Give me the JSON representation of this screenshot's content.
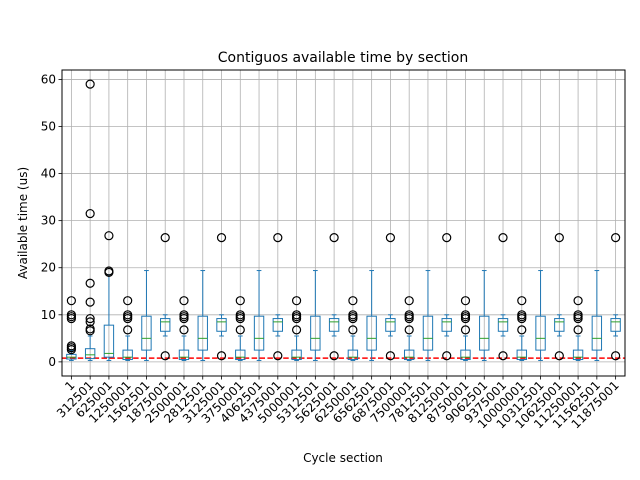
{
  "chart_data": {
    "type": "box",
    "title": "Contiguos available time by section",
    "xlabel": "Cycle section",
    "ylabel": "Available time (us)",
    "ylim": [
      -3,
      62
    ],
    "yticks": [
      0,
      10,
      20,
      30,
      40,
      50,
      60
    ],
    "grid": true,
    "reference_line": {
      "y": 0.8,
      "color": "#ff0000",
      "style": "dashed"
    },
    "box_color": "#1f77b4",
    "median_color": "#2ca02c",
    "categories": [
      "1",
      "312501",
      "625001",
      "1250001",
      "1562501",
      "1875001",
      "2500001",
      "2812501",
      "3125001",
      "3750001",
      "4062501",
      "4375001",
      "5000001",
      "5312501",
      "5625001",
      "6250001",
      "6562501",
      "6875001",
      "7500001",
      "7812501",
      "8125001",
      "8750001",
      "9062501",
      "9375001",
      "10000001",
      "10312501",
      "10625001",
      "11250001",
      "11562501",
      "11875001"
    ],
    "boxes": [
      {
        "whislo": 0.3,
        "q1": 0.6,
        "med": 1.0,
        "q3": 1.6,
        "whishi": 2.4,
        "fliers": [
          2.6,
          3.0,
          3.4,
          9.2,
          9.6,
          10.0,
          13.0
        ]
      },
      {
        "whislo": 0.3,
        "q1": 0.7,
        "med": 1.5,
        "q3": 2.8,
        "whishi": 5.5,
        "fliers": [
          6.6,
          7.0,
          8.5,
          9.2,
          12.7,
          16.7,
          31.5,
          59.0
        ]
      },
      {
        "whislo": 0.3,
        "q1": 1.0,
        "med": 1.8,
        "q3": 7.8,
        "whishi": 18.5,
        "fliers": [
          19.0,
          19.3,
          26.8
        ]
      },
      {
        "whislo": 0.3,
        "q1": 0.5,
        "med": 1.0,
        "q3": 2.5,
        "whishi": 5.5,
        "fliers": [
          6.8,
          9.2,
          9.6,
          10.0,
          13.0
        ]
      },
      {
        "whislo": 0.3,
        "q1": 2.5,
        "med": 5.0,
        "q3": 9.7,
        "whishi": 19.4,
        "fliers": []
      },
      {
        "whislo": 5.5,
        "q1": 6.5,
        "med": 8.5,
        "q3": 9.2,
        "whishi": 10.0,
        "fliers": [
          1.3,
          26.4
        ]
      },
      {
        "whislo": 0.3,
        "q1": 0.5,
        "med": 1.0,
        "q3": 2.5,
        "whishi": 5.5,
        "fliers": [
          6.8,
          9.2,
          9.6,
          10.0,
          13.0
        ]
      },
      {
        "whislo": 0.3,
        "q1": 2.5,
        "med": 5.0,
        "q3": 9.7,
        "whishi": 19.4,
        "fliers": []
      },
      {
        "whislo": 5.5,
        "q1": 6.5,
        "med": 8.5,
        "q3": 9.2,
        "whishi": 10.0,
        "fliers": [
          1.3,
          26.4
        ]
      },
      {
        "whislo": 0.3,
        "q1": 0.5,
        "med": 1.0,
        "q3": 2.5,
        "whishi": 5.5,
        "fliers": [
          6.8,
          9.2,
          9.6,
          10.0,
          13.0
        ]
      },
      {
        "whislo": 0.3,
        "q1": 2.5,
        "med": 5.0,
        "q3": 9.7,
        "whishi": 19.4,
        "fliers": []
      },
      {
        "whislo": 5.5,
        "q1": 6.5,
        "med": 8.5,
        "q3": 9.2,
        "whishi": 10.0,
        "fliers": [
          1.3,
          26.4
        ]
      },
      {
        "whislo": 0.3,
        "q1": 0.5,
        "med": 1.0,
        "q3": 2.5,
        "whishi": 5.5,
        "fliers": [
          6.8,
          9.2,
          9.6,
          10.0,
          13.0
        ]
      },
      {
        "whislo": 0.3,
        "q1": 2.5,
        "med": 5.0,
        "q3": 9.7,
        "whishi": 19.4,
        "fliers": []
      },
      {
        "whislo": 5.5,
        "q1": 6.5,
        "med": 8.5,
        "q3": 9.2,
        "whishi": 10.0,
        "fliers": [
          1.3,
          26.4
        ]
      },
      {
        "whislo": 0.3,
        "q1": 0.5,
        "med": 1.0,
        "q3": 2.5,
        "whishi": 5.5,
        "fliers": [
          6.8,
          9.2,
          9.6,
          10.0,
          13.0
        ]
      },
      {
        "whislo": 0.3,
        "q1": 2.5,
        "med": 5.0,
        "q3": 9.7,
        "whishi": 19.4,
        "fliers": []
      },
      {
        "whislo": 5.5,
        "q1": 6.5,
        "med": 8.5,
        "q3": 9.2,
        "whishi": 10.0,
        "fliers": [
          1.3,
          26.4
        ]
      },
      {
        "whislo": 0.3,
        "q1": 0.5,
        "med": 1.0,
        "q3": 2.5,
        "whishi": 5.5,
        "fliers": [
          6.8,
          9.2,
          9.6,
          10.0,
          13.0
        ]
      },
      {
        "whislo": 0.3,
        "q1": 2.5,
        "med": 5.0,
        "q3": 9.7,
        "whishi": 19.4,
        "fliers": []
      },
      {
        "whislo": 5.5,
        "q1": 6.5,
        "med": 8.5,
        "q3": 9.2,
        "whishi": 10.0,
        "fliers": [
          1.3,
          26.4
        ]
      },
      {
        "whislo": 0.3,
        "q1": 0.5,
        "med": 1.0,
        "q3": 2.5,
        "whishi": 5.5,
        "fliers": [
          6.8,
          9.2,
          9.6,
          10.0,
          13.0
        ]
      },
      {
        "whislo": 0.3,
        "q1": 2.5,
        "med": 5.0,
        "q3": 9.7,
        "whishi": 19.4,
        "fliers": []
      },
      {
        "whislo": 5.5,
        "q1": 6.5,
        "med": 8.5,
        "q3": 9.2,
        "whishi": 10.0,
        "fliers": [
          1.3,
          26.4
        ]
      },
      {
        "whislo": 0.3,
        "q1": 0.5,
        "med": 1.0,
        "q3": 2.5,
        "whishi": 5.5,
        "fliers": [
          6.8,
          9.2,
          9.6,
          10.0,
          13.0
        ]
      },
      {
        "whislo": 0.3,
        "q1": 2.5,
        "med": 5.0,
        "q3": 9.7,
        "whishi": 19.4,
        "fliers": []
      },
      {
        "whislo": 5.5,
        "q1": 6.5,
        "med": 8.5,
        "q3": 9.2,
        "whishi": 10.0,
        "fliers": [
          1.3,
          26.4
        ]
      },
      {
        "whislo": 0.3,
        "q1": 0.5,
        "med": 1.0,
        "q3": 2.5,
        "whishi": 5.5,
        "fliers": [
          6.8,
          9.2,
          9.6,
          10.0,
          13.0
        ]
      },
      {
        "whislo": 0.3,
        "q1": 2.5,
        "med": 5.0,
        "q3": 9.7,
        "whishi": 19.4,
        "fliers": []
      },
      {
        "whislo": 5.5,
        "q1": 6.5,
        "med": 8.5,
        "q3": 9.2,
        "whishi": 10.0,
        "fliers": [
          1.3,
          26.4
        ]
      }
    ]
  }
}
